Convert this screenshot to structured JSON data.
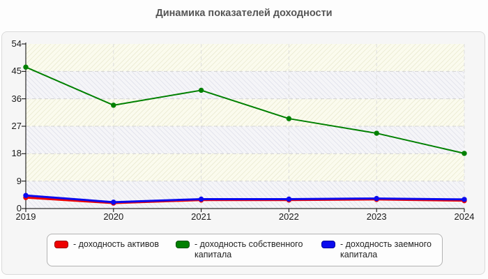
{
  "title": "Динамика показателей доходности",
  "chart_data": {
    "type": "line",
    "x": [
      2019,
      2020,
      2021,
      2022,
      2023,
      2024
    ],
    "series": [
      {
        "name": "доходность активов",
        "color": "#ee0000",
        "values": [
          3.6,
          1.8,
          2.8,
          2.8,
          3.0,
          2.6
        ]
      },
      {
        "name": "доходность собственного капитала",
        "color": "#008000",
        "values": [
          46.4,
          33.9,
          38.8,
          29.5,
          24.7,
          18.1
        ]
      },
      {
        "name": "доходность заемного капитала",
        "color": "#0b0bee",
        "values": [
          4.3,
          2.1,
          3.1,
          3.1,
          3.3,
          3.0
        ]
      }
    ],
    "title": "Динамика показателей доходности",
    "xlabel": "",
    "ylabel": "",
    "ylim": [
      0,
      54
    ],
    "yticks": [
      0,
      9,
      18,
      27,
      36,
      45,
      54
    ],
    "grid": true,
    "gridline_style": "dashed",
    "legend_position": "bottom"
  },
  "legend": {
    "items": [
      {
        "label": "- доходность активов",
        "color": "#ee0000",
        "border": "#990000"
      },
      {
        "label": "- доходность собственного капитала",
        "color": "#008000",
        "border": "#004d00"
      },
      {
        "label": "- доходность заемного капитала",
        "color": "#0b0bee",
        "border": "#000099"
      }
    ]
  }
}
